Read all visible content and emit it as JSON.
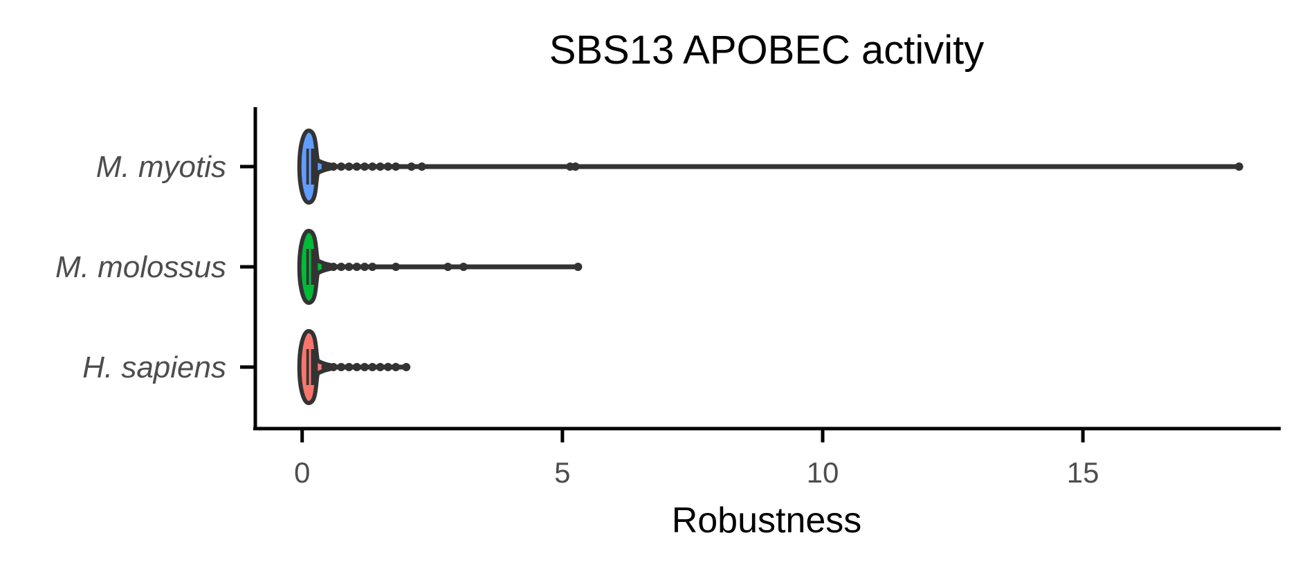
{
  "chart_data": {
    "type": "violin",
    "orientation": "horizontal",
    "title": "SBS13 APOBEC activity",
    "xlabel": "Robustness",
    "ylabel": "",
    "xlim": [
      -0.9,
      18.8
    ],
    "xticks": [
      0,
      5,
      10,
      15
    ],
    "xtick_labels": [
      "0",
      "5",
      "10",
      "15"
    ],
    "categories": [
      "M. myotis",
      "M. molossus",
      "H. sapiens"
    ],
    "grid": false,
    "legend": "none",
    "series": [
      {
        "category": "M. myotis",
        "color": "#619CFF",
        "median": 0.15,
        "q1": 0.08,
        "q3": 0.3,
        "min": 0.0,
        "max": 18.0,
        "outliers": [
          0.45,
          0.6,
          0.75,
          0.9,
          1.05,
          1.2,
          1.35,
          1.5,
          1.65,
          1.8,
          2.1,
          2.3,
          5.15,
          5.25,
          18.0
        ]
      },
      {
        "category": "M. molossus",
        "color": "#00BA38",
        "median": 0.15,
        "q1": 0.08,
        "q3": 0.3,
        "min": 0.0,
        "max": 5.3,
        "outliers": [
          0.45,
          0.6,
          0.75,
          0.9,
          1.05,
          1.2,
          1.35,
          1.8,
          2.8,
          3.1,
          5.3
        ]
      },
      {
        "category": "H. sapiens",
        "color": "#F8766D",
        "median": 0.15,
        "q1": 0.08,
        "q3": 0.3,
        "min": 0.0,
        "max": 2.0,
        "outliers": [
          0.45,
          0.6,
          0.75,
          0.9,
          1.05,
          1.2,
          1.35,
          1.5,
          1.65,
          1.8,
          2.0
        ]
      }
    ]
  }
}
